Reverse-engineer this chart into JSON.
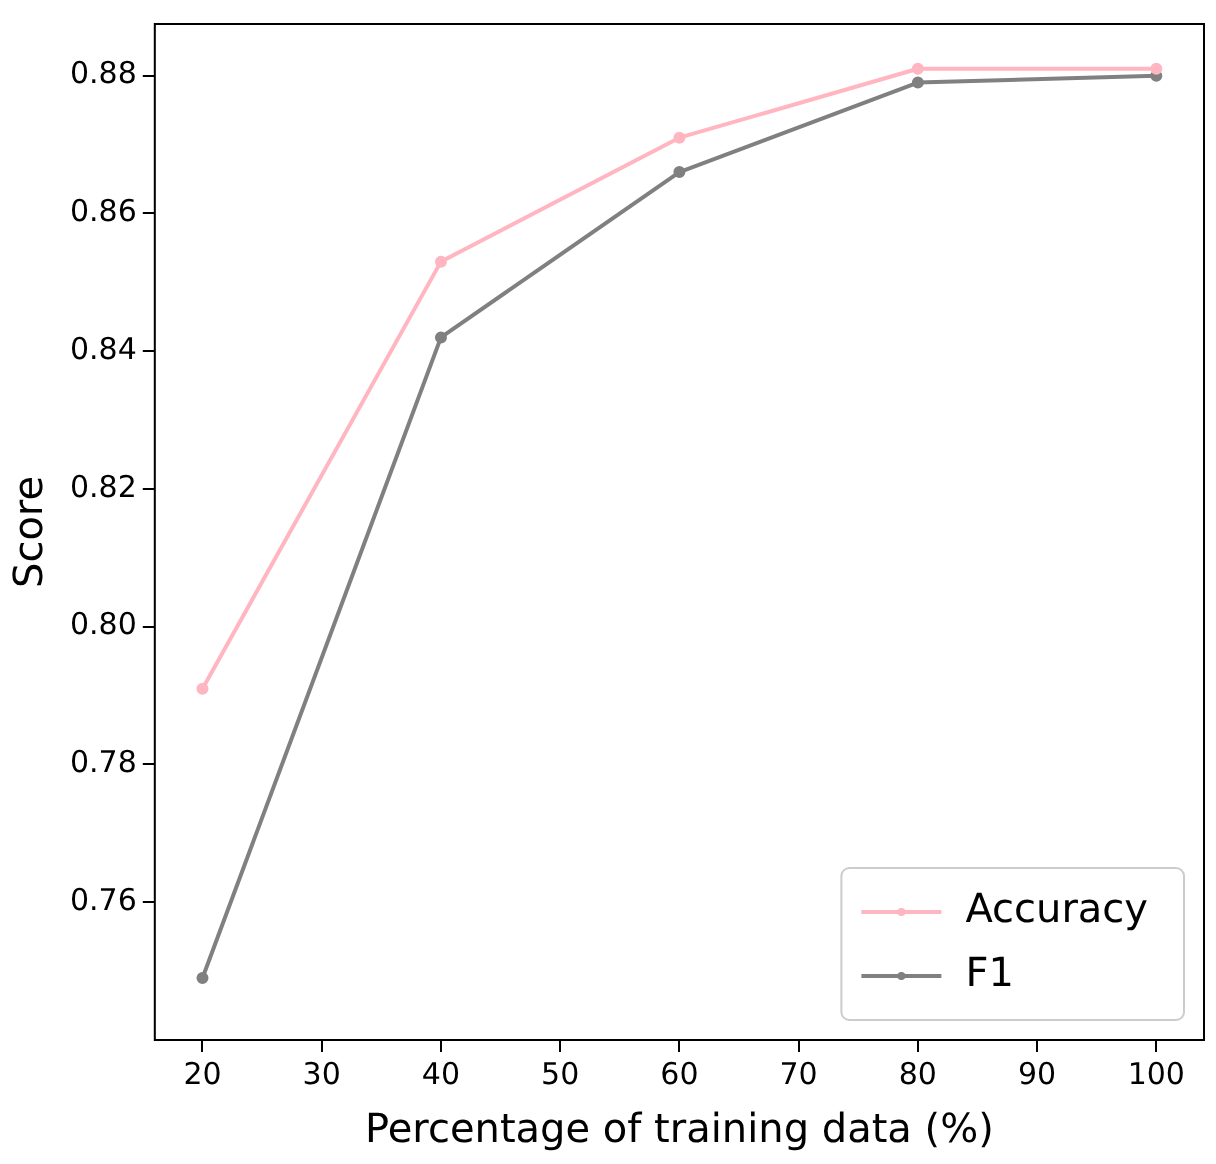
{
  "chart_data": {
    "type": "line",
    "xlabel": "Percentage of training data (%)",
    "ylabel": "Score",
    "x": [
      20,
      40,
      60,
      80,
      100
    ],
    "series": [
      {
        "name": "Accuracy",
        "color": "#ffb6c1",
        "values": [
          0.791,
          0.853,
          0.871,
          0.881,
          0.881
        ]
      },
      {
        "name": "F1",
        "color": "#808080",
        "values": [
          0.749,
          0.842,
          0.866,
          0.879,
          0.88
        ]
      }
    ],
    "xlim": [
      16,
      104
    ],
    "xticks": [
      20,
      30,
      40,
      50,
      60,
      70,
      80,
      90,
      100
    ],
    "ylim": [
      0.74,
      0.8875
    ],
    "yticks": [
      0.76,
      0.78,
      {
        "value": 0.8,
        "label": "0.80"
      },
      0.82,
      0.84,
      0.86,
      0.88
    ],
    "grid": false,
    "legend": "bottom right",
    "marker": "circle",
    "line_style": "solid"
  }
}
